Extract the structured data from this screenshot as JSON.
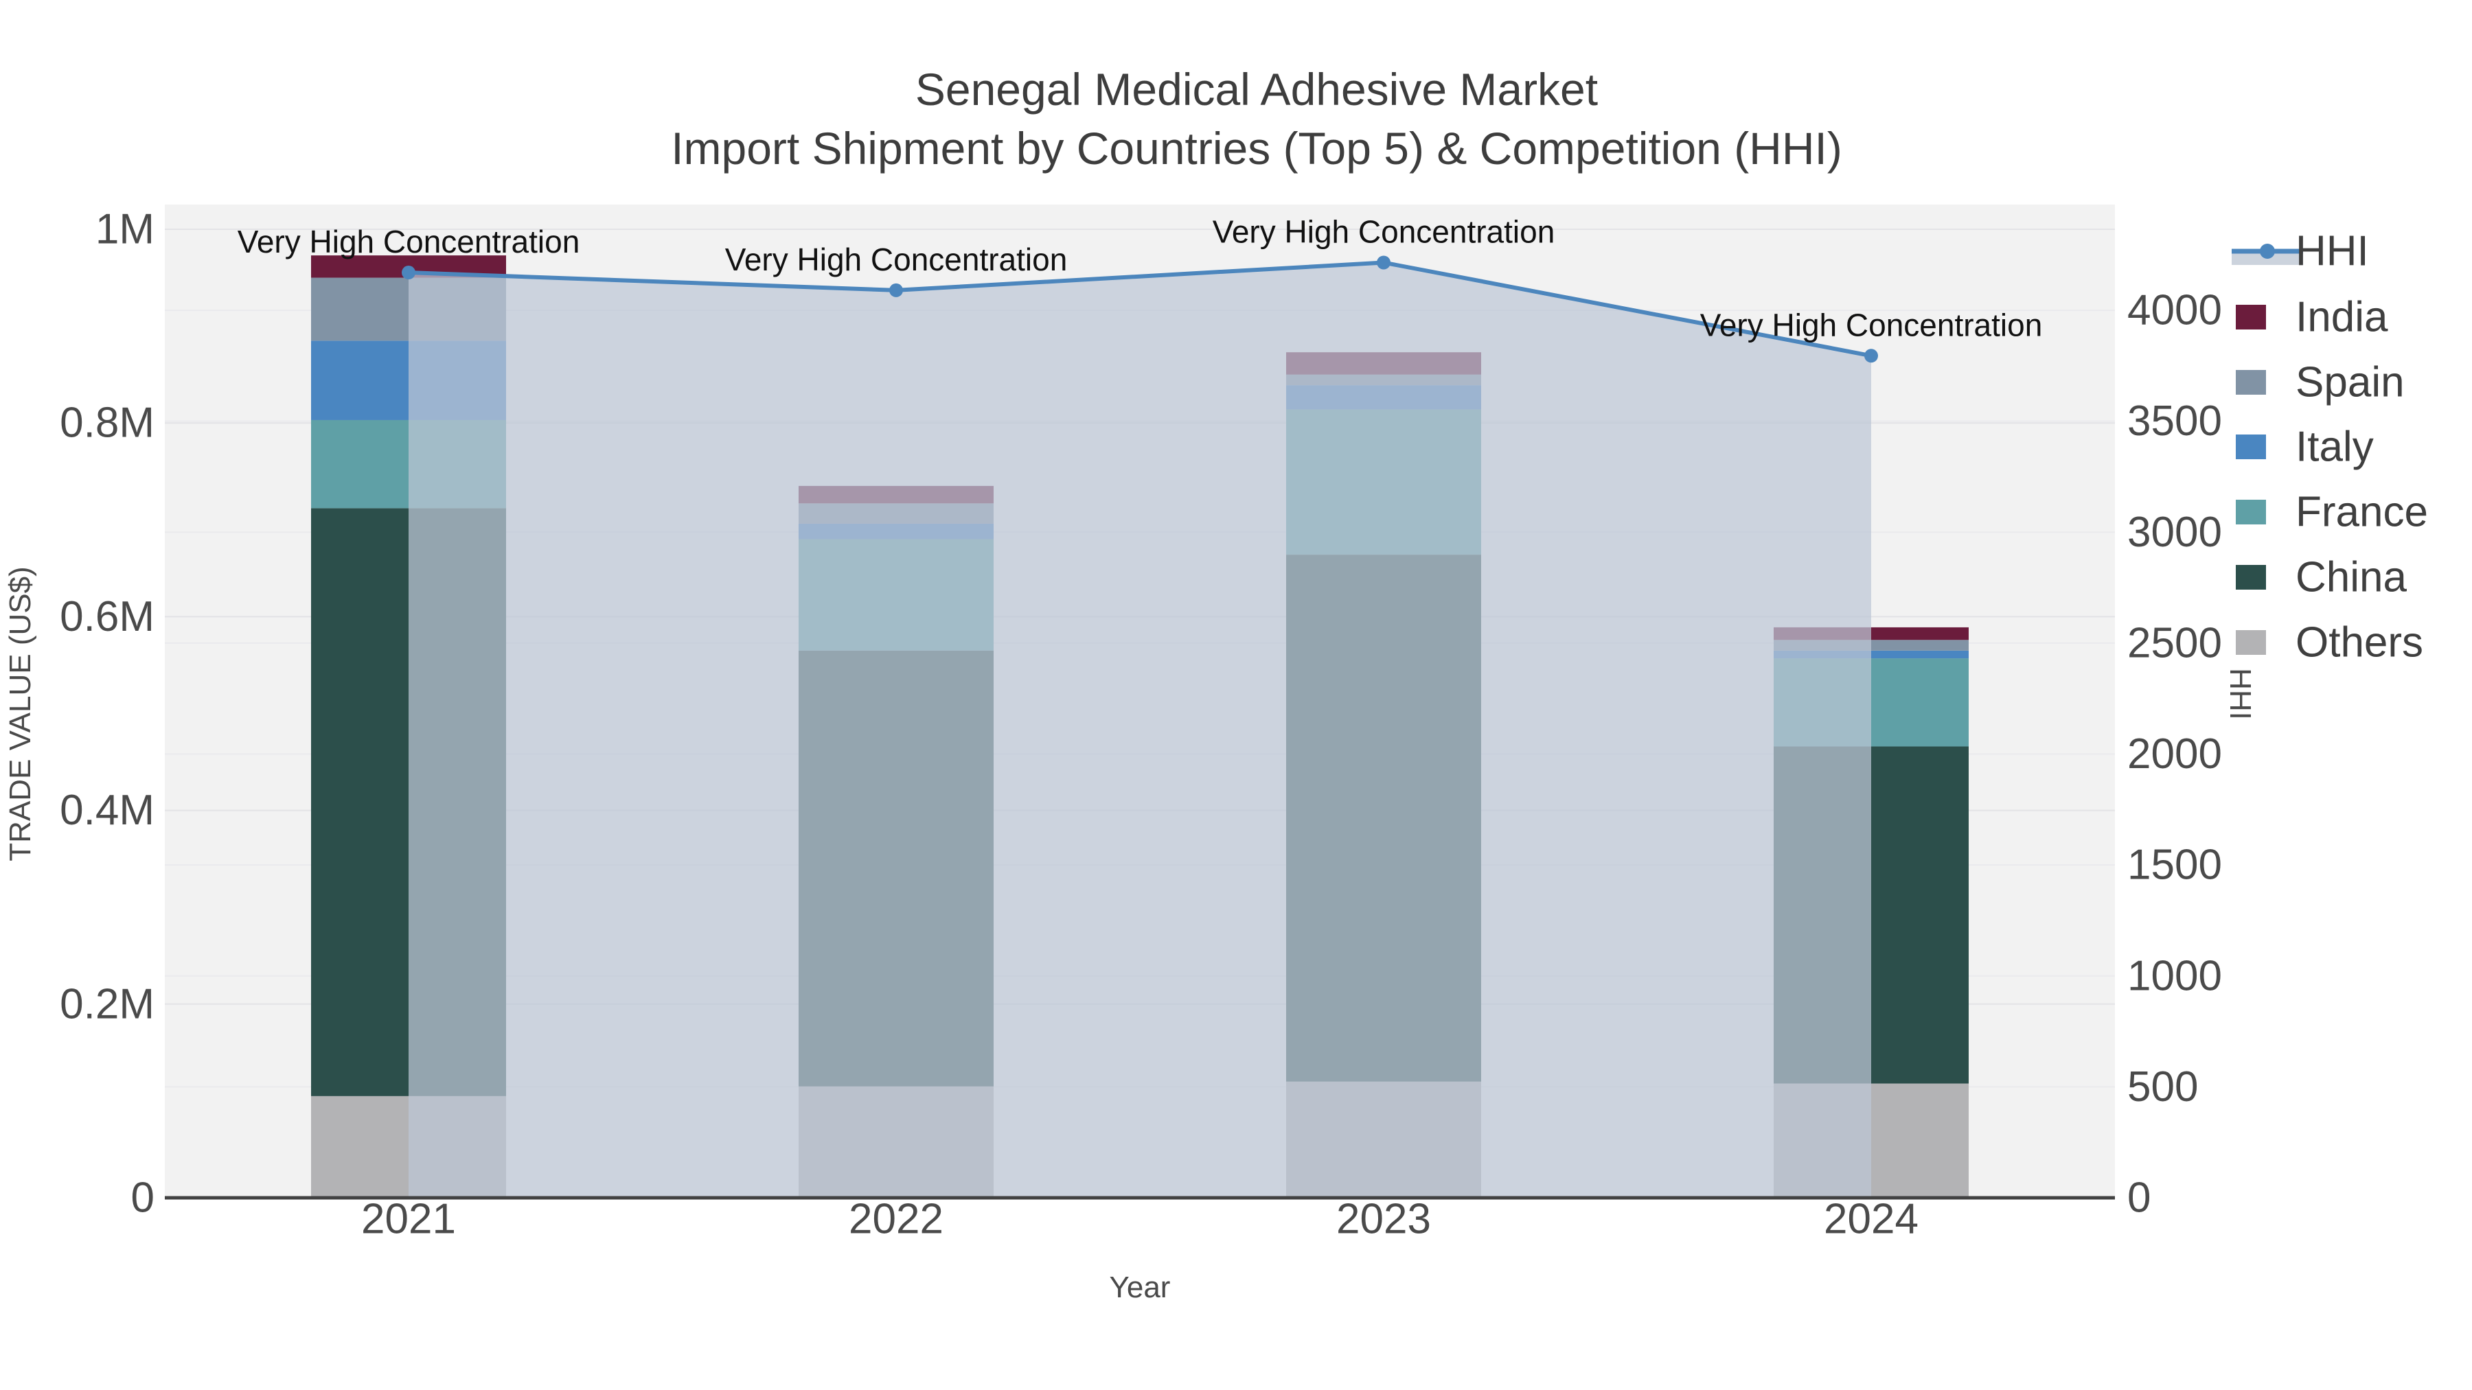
{
  "title": {
    "line1": "Senegal Medical Adhesive Market",
    "line2": "Import Shipment by Countries (Top 5) & Competition (HHI)"
  },
  "axes": {
    "x": {
      "title": "Year",
      "ticks": [
        "2021",
        "2022",
        "2023",
        "2024"
      ]
    },
    "y_left": {
      "title": "TRADE VALUE (US$)",
      "ticks": [
        "0",
        "0.2M",
        "0.4M",
        "0.6M",
        "0.8M",
        "1M"
      ],
      "range": [
        0,
        1000000
      ]
    },
    "y_right": {
      "title": "HHI",
      "ticks": [
        "0",
        "500",
        "1000",
        "1500",
        "2000",
        "2500",
        "3000",
        "3500",
        "4000"
      ],
      "range": [
        0,
        4000
      ]
    }
  },
  "legend": {
    "items": [
      {
        "label": "HHI",
        "type": "line",
        "color": "#4C86BD",
        "fill": "#ccd3dd"
      },
      {
        "label": "India",
        "type": "bar",
        "color": "#6B1C3C"
      },
      {
        "label": "Spain",
        "type": "bar",
        "color": "#8193A5"
      },
      {
        "label": "Italy",
        "type": "bar",
        "color": "#4A86C1"
      },
      {
        "label": "France",
        "type": "bar",
        "color": "#5FA0A6"
      },
      {
        "label": "China",
        "type": "bar",
        "color": "#2C4F4B"
      },
      {
        "label": "Others",
        "type": "bar",
        "color": "#B3B3B5"
      }
    ]
  },
  "chart_data": {
    "type": "bar",
    "subtype": "stacked-bars-with-line",
    "categories": [
      "2021",
      "2022",
      "2023",
      "2024"
    ],
    "bar_unit": "US$",
    "series": [
      {
        "name": "Others",
        "color": "#B3B3B5",
        "values": [
          105000,
          115000,
          120000,
          118000
        ]
      },
      {
        "name": "China",
        "color": "#2C4F4B",
        "values": [
          607000,
          450000,
          544000,
          348000
        ]
      },
      {
        "name": "France",
        "color": "#5FA0A6",
        "values": [
          91000,
          115000,
          150000,
          91000
        ]
      },
      {
        "name": "Italy",
        "color": "#4A86C1",
        "values": [
          82000,
          16000,
          25000,
          8000
        ]
      },
      {
        "name": "Spain",
        "color": "#8193A5",
        "values": [
          65000,
          21000,
          11000,
          11000
        ]
      },
      {
        "name": "India",
        "color": "#6B1C3C",
        "values": [
          23000,
          18000,
          23000,
          13000
        ]
      }
    ],
    "line_series": {
      "name": "HHI",
      "axis": "right",
      "color": "#4C86BD",
      "area_fill": "rgba(188,198,213,0.72)",
      "values": [
        4170,
        4090,
        4215,
        3795
      ]
    },
    "annotations": [
      {
        "x": "2021",
        "text": "Very High Concentration"
      },
      {
        "x": "2022",
        "text": "Very High Concentration"
      },
      {
        "x": "2023",
        "text": "Very High Concentration"
      },
      {
        "x": "2024",
        "text": "Very High Concentration"
      }
    ],
    "title": "Senegal Medical Adhesive Market — Import Shipment by Countries (Top 5) & Competition (HHI)",
    "xlabel": "Year",
    "ylabel": "TRADE VALUE (US$)",
    "ylabel2": "HHI",
    "ylim_left": [
      0,
      1000000
    ],
    "ylim_right": [
      0,
      4000
    ],
    "grid": true,
    "legend_position": "right"
  },
  "colors": {
    "plot_bg": "#f2f2f2",
    "page_bg": "#ffffff",
    "grid_left": "#e3e3e6",
    "grid_right": "#eaeaed",
    "axis_line": "#424242",
    "tick_text": "#4a4a4a",
    "title_text": "#3d3d3d",
    "annotation_text": "#111111"
  }
}
